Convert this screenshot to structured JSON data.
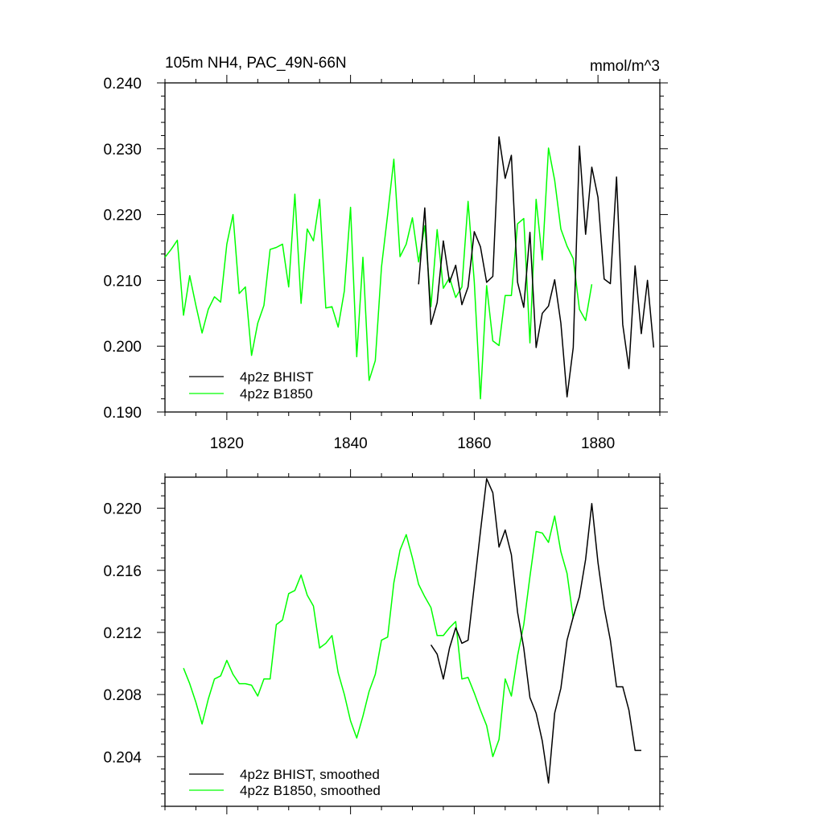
{
  "chart_data": [
    {
      "type": "line",
      "title": "105m NH4, PAC_49N-66N",
      "units": "mmol/m^3",
      "xlim": [
        1810,
        1890
      ],
      "ylim": [
        0.19,
        0.24
      ],
      "x_ticks": [
        1820,
        1840,
        1860,
        1880
      ],
      "x_tick_labels": [
        "1820",
        "1840",
        "1860",
        "1880"
      ],
      "y_ticks": [
        0.19,
        0.2,
        0.21,
        0.22,
        0.23,
        0.24
      ],
      "y_tick_labels": [
        "0.190",
        "0.200",
        "0.210",
        "0.220",
        "0.230",
        "0.240"
      ],
      "legend_position": "bottom-left",
      "series": [
        {
          "name": "4p2z BHIST",
          "color": "#000000",
          "x": [
            1851,
            1852,
            1853,
            1854,
            1855,
            1856,
            1857,
            1858,
            1859,
            1860,
            1861,
            1862,
            1863,
            1864,
            1865,
            1866,
            1867,
            1868,
            1869,
            1870,
            1871,
            1872,
            1873,
            1874,
            1875,
            1876,
            1877,
            1878,
            1879,
            1880,
            1881,
            1882,
            1883,
            1884,
            1885,
            1886,
            1887,
            1888,
            1889
          ],
          "values": [
            0.2094,
            0.221,
            0.2033,
            0.2066,
            0.216,
            0.2097,
            0.2123,
            0.2063,
            0.209,
            0.2174,
            0.2151,
            0.2097,
            0.2106,
            0.2318,
            0.2255,
            0.229,
            0.2097,
            0.2059,
            0.2173,
            0.1998,
            0.205,
            0.2061,
            0.2101,
            0.2035,
            0.1923,
            0.1998,
            0.2304,
            0.217,
            0.2272,
            0.2226,
            0.2102,
            0.2095,
            0.2257,
            0.2033,
            0.1966,
            0.2122,
            0.2019,
            0.21,
            0.1998
          ]
        },
        {
          "name": "4p2z B1850",
          "color": "#00ff00",
          "x": [
            1810,
            1811,
            1812,
            1813,
            1814,
            1815,
            1816,
            1817,
            1818,
            1819,
            1820,
            1821,
            1822,
            1823,
            1824,
            1825,
            1826,
            1827,
            1828,
            1829,
            1830,
            1831,
            1832,
            1833,
            1834,
            1835,
            1836,
            1837,
            1838,
            1839,
            1840,
            1841,
            1842,
            1843,
            1844,
            1845,
            1846,
            1847,
            1848,
            1849,
            1850,
            1851,
            1852,
            1853,
            1854,
            1855,
            1856,
            1857,
            1858,
            1859,
            1860,
            1861,
            1862,
            1863,
            1864,
            1865,
            1866,
            1867,
            1868,
            1869,
            1870,
            1871,
            1872,
            1873,
            1874,
            1875,
            1876,
            1877,
            1878,
            1879
          ],
          "values": [
            0.2135,
            0.2147,
            0.2161,
            0.2047,
            0.2107,
            0.2062,
            0.202,
            0.2056,
            0.2075,
            0.2067,
            0.2155,
            0.22,
            0.208,
            0.209,
            0.1986,
            0.2035,
            0.2062,
            0.2147,
            0.215,
            0.2155,
            0.209,
            0.2231,
            0.2065,
            0.2178,
            0.216,
            0.2223,
            0.2058,
            0.206,
            0.2029,
            0.2084,
            0.2211,
            0.1984,
            0.2135,
            0.1948,
            0.1978,
            0.212,
            0.22,
            0.2284,
            0.2136,
            0.2155,
            0.2195,
            0.2128,
            0.2183,
            0.206,
            0.2177,
            0.2088,
            0.2104,
            0.2074,
            0.209,
            0.222,
            0.2098,
            0.192,
            0.2092,
            0.2008,
            0.2001,
            0.2077,
            0.2077,
            0.2186,
            0.2194,
            0.2005,
            0.2223,
            0.2131,
            0.2301,
            0.2252,
            0.2178,
            0.2152,
            0.2133,
            0.2056,
            0.2039,
            0.2094
          ]
        }
      ]
    },
    {
      "type": "line",
      "xlim": [
        1810,
        1890
      ],
      "ylim": [
        0.2008,
        0.222
      ],
      "x_ticks": [
        1820,
        1840,
        1860,
        1880
      ],
      "y_ticks": [
        0.204,
        0.208,
        0.212,
        0.216,
        0.22
      ],
      "y_tick_labels": [
        "0.204",
        "0.208",
        "0.212",
        "0.216",
        "0.220"
      ],
      "legend_position": "bottom-left",
      "series": [
        {
          "name": "4p2z BHIST, smoothed",
          "color": "#000000",
          "x": [
            1853,
            1854,
            1855,
            1856,
            1857,
            1858,
            1859,
            1860,
            1861,
            1862,
            1863,
            1864,
            1865,
            1866,
            1867,
            1868,
            1869,
            1870,
            1871,
            1872,
            1873,
            1874,
            1875,
            1876,
            1877,
            1878,
            1879,
            1880,
            1881,
            1882,
            1883,
            1884,
            1885,
            1886,
            1887
          ],
          "values": [
            0.2112,
            0.2106,
            0.209,
            0.211,
            0.2123,
            0.2113,
            0.2115,
            0.215,
            0.2185,
            0.2219,
            0.221,
            0.2175,
            0.2186,
            0.217,
            0.2133,
            0.211,
            0.2078,
            0.2068,
            0.205,
            0.2023,
            0.2068,
            0.2084,
            0.2115,
            0.213,
            0.2143,
            0.2167,
            0.2203,
            0.2165,
            0.2136,
            0.2115,
            0.2085,
            0.2085,
            0.207,
            0.2044,
            0.2044
          ]
        },
        {
          "name": "4p2z B1850, smoothed",
          "color": "#00ff00",
          "x": [
            1813,
            1814,
            1815,
            1816,
            1817,
            1818,
            1819,
            1820,
            1821,
            1822,
            1823,
            1824,
            1825,
            1826,
            1827,
            1828,
            1829,
            1830,
            1831,
            1832,
            1833,
            1834,
            1835,
            1836,
            1837,
            1838,
            1839,
            1840,
            1841,
            1842,
            1843,
            1844,
            1845,
            1846,
            1847,
            1848,
            1849,
            1850,
            1851,
            1852,
            1853,
            1854,
            1855,
            1856,
            1857,
            1858,
            1859,
            1860,
            1861,
            1862,
            1863,
            1864,
            1865,
            1866,
            1867,
            1868,
            1869,
            1870,
            1871,
            1872,
            1873,
            1874,
            1875,
            1876
          ],
          "values": [
            0.2097,
            0.2087,
            0.2075,
            0.2061,
            0.2077,
            0.209,
            0.2092,
            0.2102,
            0.2093,
            0.2087,
            0.2087,
            0.2086,
            0.2079,
            0.209,
            0.209,
            0.2125,
            0.2128,
            0.2145,
            0.2147,
            0.2157,
            0.2144,
            0.2137,
            0.211,
            0.2113,
            0.2118,
            0.2094,
            0.208,
            0.2063,
            0.2052,
            0.2066,
            0.2082,
            0.2093,
            0.2115,
            0.2117,
            0.2152,
            0.2173,
            0.2183,
            0.2168,
            0.2151,
            0.2143,
            0.2136,
            0.2118,
            0.2118,
            0.2123,
            0.2127,
            0.209,
            0.2091,
            0.2081,
            0.207,
            0.206,
            0.204,
            0.2051,
            0.209,
            0.2079,
            0.2105,
            0.2125,
            0.2156,
            0.2185,
            0.2184,
            0.2178,
            0.2195,
            0.2172,
            0.2158,
            0.2129
          ]
        }
      ]
    }
  ]
}
